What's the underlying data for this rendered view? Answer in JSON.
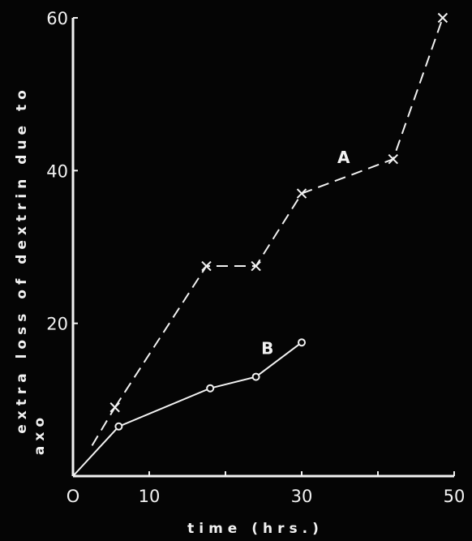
{
  "chart_data": {
    "type": "line",
    "title": "",
    "xlabel": "time (hrs.)",
    "ylabel": "extra loss of dextrin due to axo",
    "ylabel_lines": [
      "extra loss of dextrin due to",
      "axo"
    ],
    "xlim": [
      0,
      50
    ],
    "ylim": [
      0,
      60
    ],
    "xticks": [
      0,
      10,
      20,
      30,
      40,
      50
    ],
    "xtick_labels": [
      "O",
      "10",
      "",
      "30",
      "",
      "50"
    ],
    "yticks": [
      0,
      20,
      40,
      60
    ],
    "ytick_labels": [
      "",
      "20",
      "40",
      "60"
    ],
    "grid": false,
    "legend": "none",
    "colors": {
      "background": "#050505",
      "foreground": "#f2f2f2"
    },
    "series": [
      {
        "name": "A",
        "line_style": "dashed",
        "marker": "x",
        "x": [
          5.5,
          17.5,
          24,
          30,
          42,
          48.5
        ],
        "y": [
          9,
          27.5,
          27.5,
          37,
          41.5,
          60
        ],
        "leading_dashed_segment_from": [
          2.5,
          4
        ]
      },
      {
        "name": "B",
        "line_style": "solid",
        "marker": "circle",
        "x": [
          0,
          6,
          18,
          24,
          30
        ],
        "y": [
          0,
          6.5,
          11.5,
          13,
          17.5
        ]
      }
    ],
    "annotations": [
      {
        "text": "A",
        "x": 35.5,
        "y": 41
      },
      {
        "text": "B",
        "x": 25.5,
        "y": 16
      }
    ]
  }
}
